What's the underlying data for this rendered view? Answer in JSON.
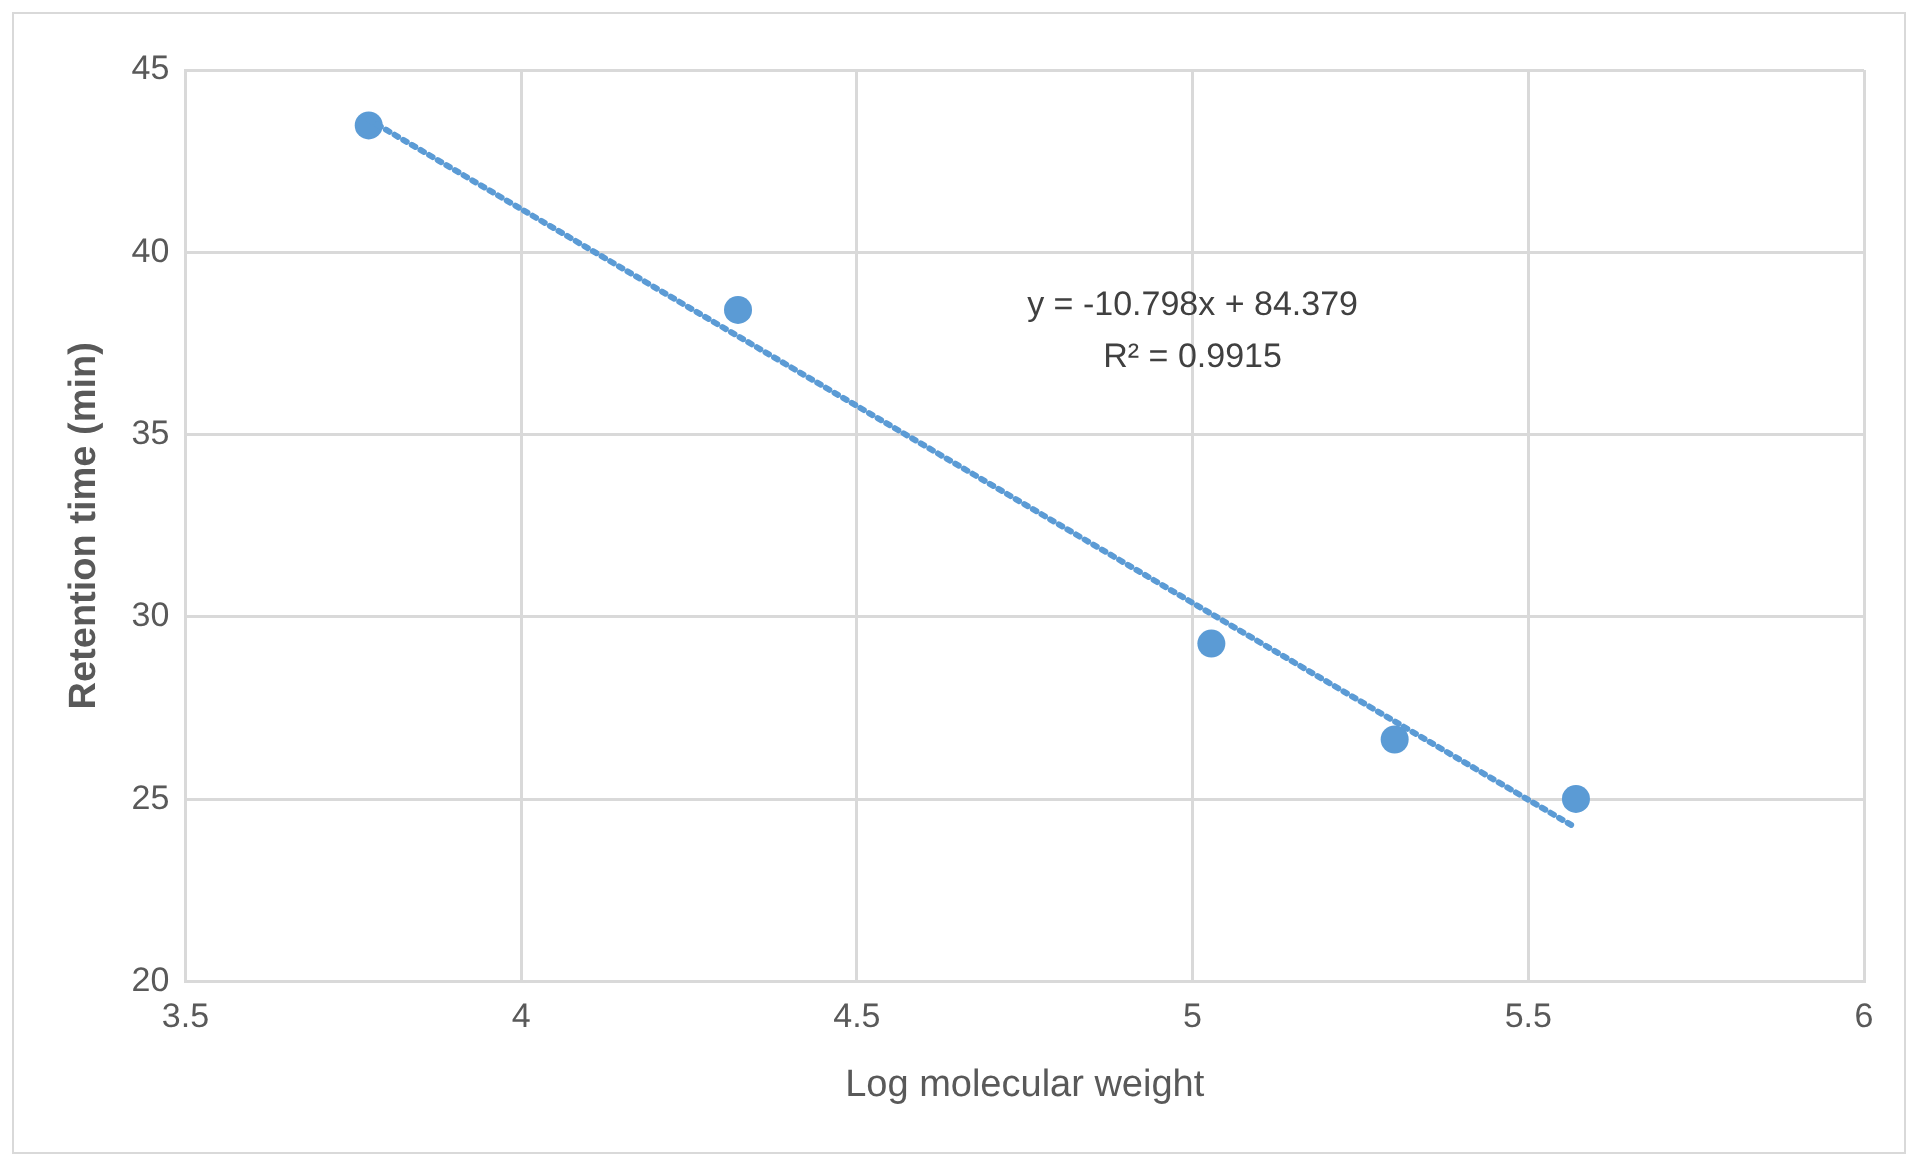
{
  "chart_data": {
    "type": "scatter",
    "xlabel": "Log molecular weight",
    "ylabel": "Retention time (min)",
    "annotations": [
      "y = -10.798x + 84.379",
      "R² = 0.9915"
    ],
    "xlim": [
      3.5,
      6
    ],
    "xticks": [
      3.5,
      4,
      4.5,
      5,
      5.5,
      6
    ],
    "ylim": [
      20,
      45
    ],
    "yticks": [
      20,
      25,
      30,
      35,
      40,
      45
    ],
    "grid": true,
    "legend": false,
    "marker": "circle",
    "series": [
      {
        "color": "#5b9bd5",
        "x": [
          3.773,
          4.323,
          5.028,
          5.301,
          5.571
        ],
        "values": [
          43.48,
          38.42,
          29.27,
          26.64,
          25.01
        ]
      },
      {
        "type": "line",
        "color": "#5b9bd5",
        "line_style": "dotted",
        "marker": "none",
        "x": [
          3.773,
          5.571
        ],
        "values": [
          43.64,
          24.22
        ]
      }
    ]
  }
}
